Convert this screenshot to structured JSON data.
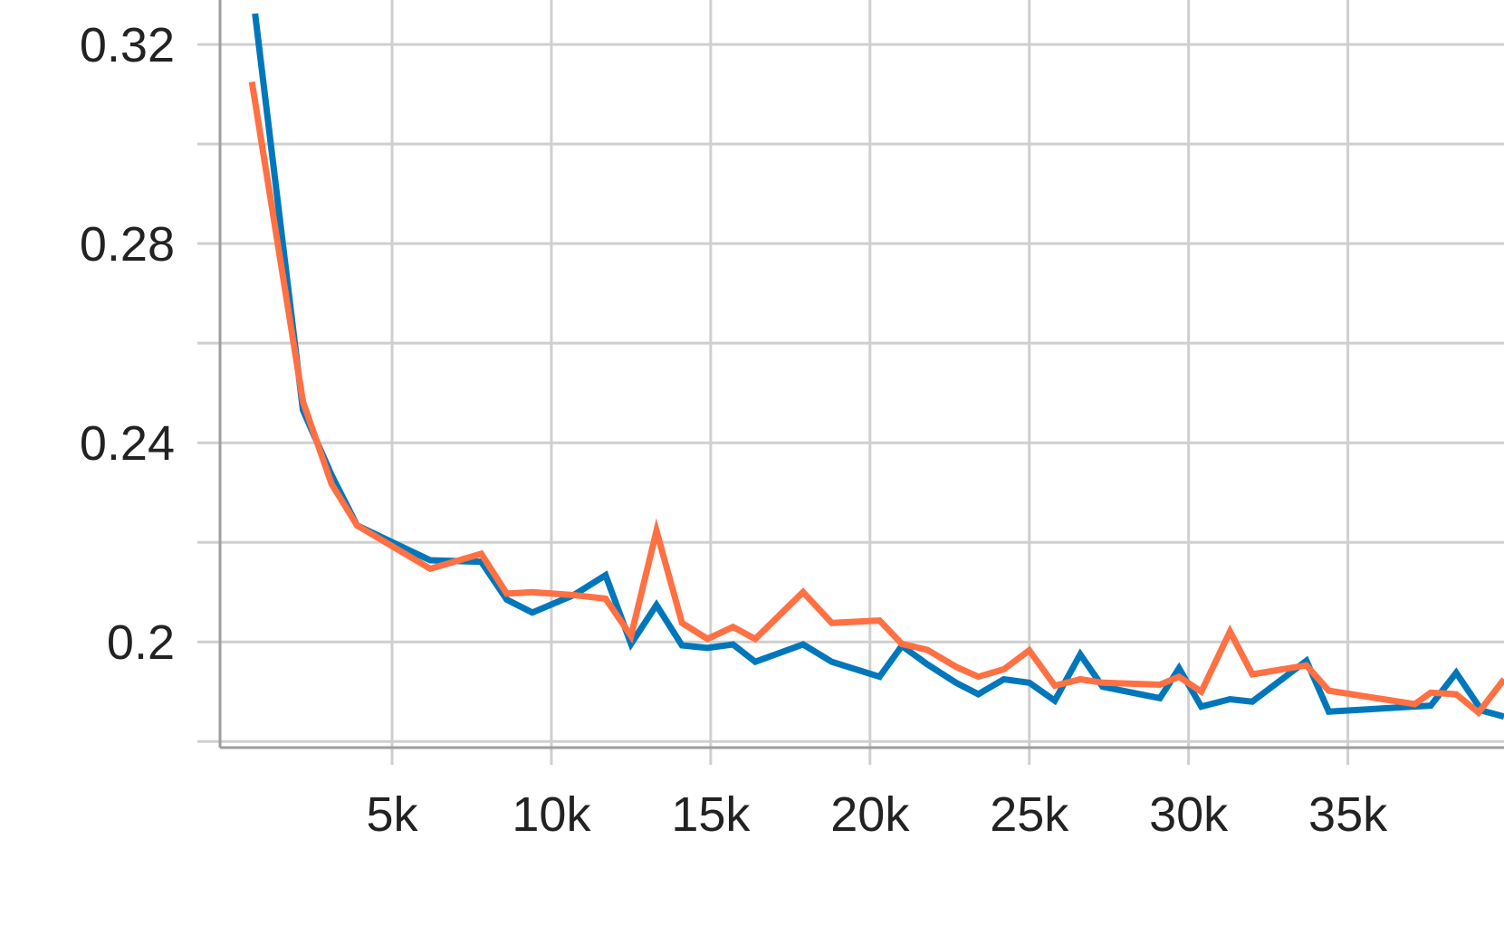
{
  "chart_data": {
    "type": "line",
    "title": "",
    "xlabel": "",
    "ylabel": "",
    "xlim": [
      -400,
      39900
    ],
    "ylim": [
      0.1795,
      0.3262
    ],
    "x_ticks": [
      {
        "value": 5000,
        "label": "5k"
      },
      {
        "value": 10000,
        "label": "10k"
      },
      {
        "value": 15000,
        "label": "15k"
      },
      {
        "value": 20000,
        "label": "20k"
      },
      {
        "value": 25000,
        "label": "25k"
      },
      {
        "value": 30000,
        "label": "30k"
      },
      {
        "value": 35000,
        "label": "35k"
      }
    ],
    "y_gridlines": [
      0.18,
      0.2,
      0.22,
      0.24,
      0.26,
      0.28,
      0.3,
      0.32
    ],
    "y_ticks": [
      {
        "value": 0.32,
        "label": "0.32"
      },
      {
        "value": 0.28,
        "label": "0.28"
      },
      {
        "value": 0.24,
        "label": "0.24"
      },
      {
        "value": 0.2,
        "label": "0.2"
      }
    ],
    "grid": true,
    "legend": "none",
    "series": [
      {
        "color": "#0077bb",
        "points": [
          [
            700,
            0.3262
          ],
          [
            2200,
            0.2466
          ],
          [
            3100,
            0.2335
          ],
          [
            3900,
            0.2234
          ],
          [
            6200,
            0.2164
          ],
          [
            7800,
            0.2161
          ],
          [
            8600,
            0.2085
          ],
          [
            9400,
            0.2059
          ],
          [
            10700,
            0.2094
          ],
          [
            11700,
            0.2134
          ],
          [
            12500,
            0.1996
          ],
          [
            13300,
            0.2074
          ],
          [
            14100,
            0.1993
          ],
          [
            14900,
            0.1988
          ],
          [
            15700,
            0.1995
          ],
          [
            16400,
            0.196
          ],
          [
            17900,
            0.1995
          ],
          [
            18800,
            0.196
          ],
          [
            20300,
            0.193
          ],
          [
            21000,
            0.1992
          ],
          [
            21800,
            0.1955
          ],
          [
            22700,
            0.1918
          ],
          [
            23400,
            0.1895
          ],
          [
            24200,
            0.1925
          ],
          [
            25000,
            0.1918
          ],
          [
            25800,
            0.1882
          ],
          [
            26600,
            0.1975
          ],
          [
            27300,
            0.191
          ],
          [
            29100,
            0.1887
          ],
          [
            29700,
            0.1947
          ],
          [
            30400,
            0.187
          ],
          [
            31300,
            0.1885
          ],
          [
            32000,
            0.188
          ],
          [
            33700,
            0.1962
          ],
          [
            34400,
            0.186
          ],
          [
            37600,
            0.1872
          ],
          [
            38400,
            0.1938
          ],
          [
            39200,
            0.1862
          ],
          [
            39900,
            0.185
          ]
        ]
      },
      {
        "color": "#ff7043",
        "points": [
          [
            600,
            0.3125
          ],
          [
            2200,
            0.2483
          ],
          [
            3100,
            0.2317
          ],
          [
            3900,
            0.2234
          ],
          [
            6200,
            0.2147
          ],
          [
            7800,
            0.2177
          ],
          [
            8600,
            0.2097
          ],
          [
            9400,
            0.21
          ],
          [
            10700,
            0.2094
          ],
          [
            11700,
            0.2087
          ],
          [
            12500,
            0.2012
          ],
          [
            13300,
            0.2223
          ],
          [
            14100,
            0.2038
          ],
          [
            14900,
            0.2006
          ],
          [
            15700,
            0.203
          ],
          [
            16400,
            0.2006
          ],
          [
            17900,
            0.21
          ],
          [
            18800,
            0.2038
          ],
          [
            20300,
            0.2043
          ],
          [
            21000,
            0.1996
          ],
          [
            21800,
            0.1984
          ],
          [
            22700,
            0.195
          ],
          [
            23400,
            0.193
          ],
          [
            24200,
            0.1945
          ],
          [
            25000,
            0.1983
          ],
          [
            25800,
            0.1912
          ],
          [
            26600,
            0.1925
          ],
          [
            27300,
            0.1918
          ],
          [
            29100,
            0.1914
          ],
          [
            29700,
            0.193
          ],
          [
            30400,
            0.19
          ],
          [
            31300,
            0.2021
          ],
          [
            32000,
            0.1935
          ],
          [
            33700,
            0.1953
          ],
          [
            34400,
            0.1902
          ],
          [
            37100,
            0.1875
          ],
          [
            37600,
            0.1898
          ],
          [
            38400,
            0.1895
          ],
          [
            39100,
            0.1858
          ],
          [
            39900,
            0.1925
          ]
        ]
      }
    ]
  }
}
